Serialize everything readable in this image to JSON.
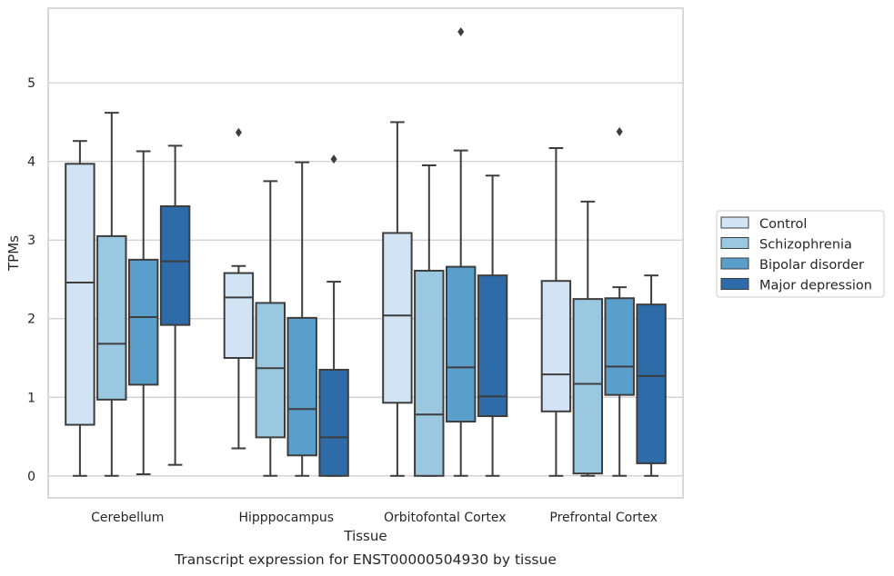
{
  "chart_data": {
    "type": "box",
    "title": "",
    "caption": "Transcript expression for ENST00000504930 by tissue",
    "xlabel": "Tissue",
    "ylabel": "TPMs",
    "ylim": [
      -0.28,
      5.95
    ],
    "yticks": [
      0,
      1,
      2,
      3,
      4,
      5
    ],
    "grid": "horizontal",
    "legend_position": "right",
    "categories": [
      "Cerebellum",
      "Hipppocampus",
      "Orbitofontal Cortex",
      "Prefrontal Cortex"
    ],
    "series": [
      {
        "name": "Control",
        "color": "#d2e3f3",
        "boxes": [
          {
            "whislo": 0.0,
            "q1": 0.65,
            "med": 2.46,
            "q3": 3.97,
            "whishi": 4.26,
            "fliers": []
          },
          {
            "whislo": 0.35,
            "q1": 1.5,
            "med": 2.27,
            "q3": 2.58,
            "whishi": 2.67,
            "fliers": [
              4.37
            ]
          },
          {
            "whislo": 0.0,
            "q1": 0.93,
            "med": 2.04,
            "q3": 3.09,
            "whishi": 4.5,
            "fliers": []
          },
          {
            "whislo": 0.0,
            "q1": 0.82,
            "med": 1.29,
            "q3": 2.48,
            "whishi": 4.17,
            "fliers": []
          }
        ]
      },
      {
        "name": "Schizophrenia",
        "color": "#9ac8e0",
        "boxes": [
          {
            "whislo": 0.0,
            "q1": 0.97,
            "med": 1.68,
            "q3": 3.05,
            "whishi": 4.62,
            "fliers": []
          },
          {
            "whislo": 0.0,
            "q1": 0.49,
            "med": 1.37,
            "q3": 2.2,
            "whishi": 3.75,
            "fliers": []
          },
          {
            "whislo": 0.0,
            "q1": 0.0,
            "med": 0.78,
            "q3": 2.61,
            "whishi": 3.95,
            "fliers": []
          },
          {
            "whislo": 0.0,
            "q1": 0.03,
            "med": 1.17,
            "q3": 2.25,
            "whishi": 3.49,
            "fliers": []
          }
        ]
      },
      {
        "name": "Bipolar disorder",
        "color": "#5a9fcc",
        "boxes": [
          {
            "whislo": 0.02,
            "q1": 1.16,
            "med": 2.02,
            "q3": 2.75,
            "whishi": 4.13,
            "fliers": []
          },
          {
            "whislo": 0.0,
            "q1": 0.26,
            "med": 0.85,
            "q3": 2.01,
            "whishi": 3.99,
            "fliers": []
          },
          {
            "whislo": 0.0,
            "q1": 0.69,
            "med": 1.38,
            "q3": 2.66,
            "whishi": 4.14,
            "fliers": [
              5.65
            ]
          },
          {
            "whislo": 0.0,
            "q1": 1.03,
            "med": 1.39,
            "q3": 2.26,
            "whishi": 2.4,
            "fliers": [
              4.38
            ]
          }
        ]
      },
      {
        "name": "Major depression",
        "color": "#2d6ca9",
        "boxes": [
          {
            "whislo": 0.14,
            "q1": 1.92,
            "med": 2.73,
            "q3": 3.43,
            "whishi": 4.2,
            "fliers": []
          },
          {
            "whislo": 0.0,
            "q1": 0.0,
            "med": 0.49,
            "q3": 1.35,
            "whishi": 2.47,
            "fliers": [
              4.03
            ]
          },
          {
            "whislo": 0.0,
            "q1": 0.76,
            "med": 1.01,
            "q3": 2.55,
            "whishi": 3.82,
            "fliers": []
          },
          {
            "whislo": 0.0,
            "q1": 0.16,
            "med": 1.27,
            "q3": 2.18,
            "whishi": 2.55,
            "fliers": []
          }
        ]
      }
    ]
  }
}
